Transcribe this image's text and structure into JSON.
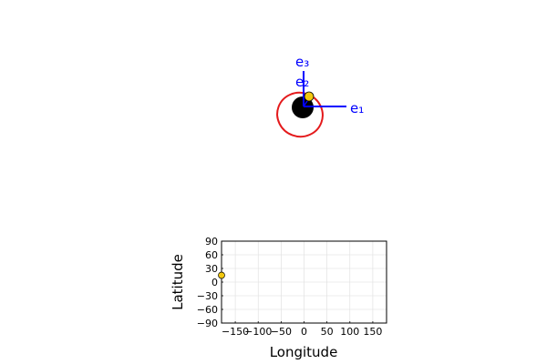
{
  "colors": {
    "orbit": "#e41a1c",
    "vectors": "#0000ff",
    "body": "#000000",
    "satellite": "#f2c80f",
    "grid": "#dddddd"
  },
  "chart_data": [
    {
      "type": "orbit-3d",
      "vector_labels": [
        "e₁",
        "e₂",
        "e₃"
      ],
      "central_body": "black sphere",
      "orbit": "red ellipse",
      "satellite": "yellow marker"
    },
    {
      "type": "scatter",
      "xlabel": "Longitude",
      "ylabel": "Latitude",
      "xlim": [
        -180,
        180
      ],
      "ylim": [
        -90,
        90
      ],
      "xticks": [
        -150,
        -100,
        -50,
        0,
        50,
        100,
        150
      ],
      "xtick_labels": [
        "−150",
        "−100",
        "−50",
        "0",
        "50",
        "100",
        "150"
      ],
      "yticks": [
        -90,
        -60,
        -30,
        0,
        30,
        60,
        90
      ],
      "ytick_labels": [
        "−90",
        "−60",
        "−30",
        "0",
        "30",
        "60",
        "90"
      ],
      "grid": true,
      "points": [
        {
          "x": -180,
          "y": 15
        }
      ]
    }
  ]
}
